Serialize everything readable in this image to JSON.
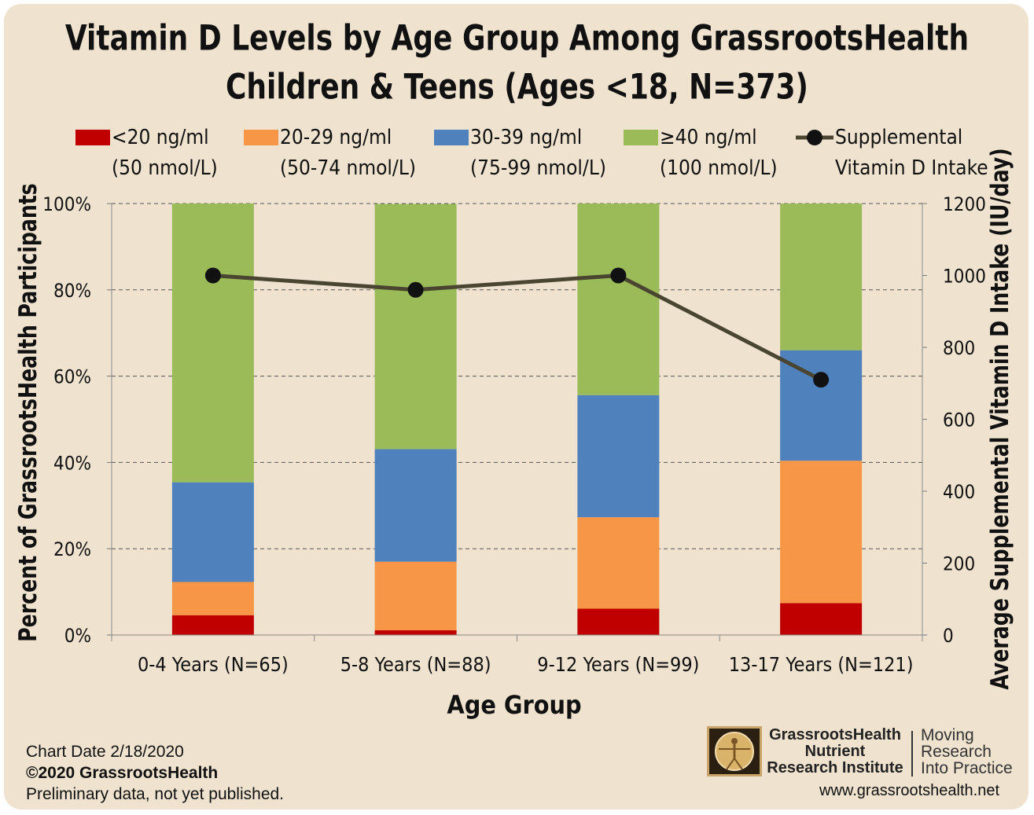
{
  "title_line1": "Vitamin D Levels by Age Group Among GrassrootsHealth",
  "title_line2": "Children & Teens (Ages <18, N=373)",
  "legend": [
    {
      "line1": "<20 ng/ml",
      "line2": "(50 nmol/L)",
      "color": "#c00000"
    },
    {
      "line1": "20-29 ng/ml",
      "line2": "(50-74 nmol/L)",
      "color": "#f79646"
    },
    {
      "line1": "30-39 ng/ml",
      "line2": "(75-99 nmol/L)",
      "color": "#4f81bd"
    },
    {
      "line1": "≥40 ng/ml",
      "line2": "(100 nmol/L)",
      "color": "#9bbb59"
    },
    {
      "line1": "Supplemental",
      "line2": "Vitamin D Intake",
      "color": "#4a4530"
    }
  ],
  "chart_data": {
    "type": "bar",
    "stacked": true,
    "categories": [
      "0-4 Years (N=65)",
      "5-8 Years (N=88)",
      "9-12 Years (N=99)",
      "13-17 Years (N=121)"
    ],
    "series": [
      {
        "name": "<20 ng/ml (50 nmol/L)",
        "values": [
          4.6,
          1.1,
          6.1,
          7.4
        ],
        "color": "#c00000"
      },
      {
        "name": "20-29 ng/ml (50-74 nmol/L)",
        "values": [
          7.7,
          15.9,
          21.2,
          33.0
        ],
        "color": "#f79646"
      },
      {
        "name": "30-39 ng/ml (75-99 nmol/L)",
        "values": [
          23.1,
          26.1,
          28.3,
          25.6
        ],
        "color": "#4f81bd"
      },
      {
        "name": "≥40 ng/ml (100 nmol/L)",
        "values": [
          64.6,
          56.8,
          44.4,
          34.0
        ],
        "color": "#9bbb59"
      }
    ],
    "line_series": {
      "name": "Supplemental Vitamin D Intake",
      "values": [
        1000,
        960,
        1000,
        710
      ],
      "color": "#4a4530",
      "axis": "right"
    },
    "xlabel": "Age Group",
    "ylabel": "Percent of GrassrootsHealth Participants",
    "y2label": "Average Supplemental Vitamin D Intake (IU/day)",
    "ylim": [
      0,
      100
    ],
    "y2lim": [
      0,
      1200
    ],
    "yticks": [
      "0%",
      "20%",
      "40%",
      "60%",
      "80%",
      "100%"
    ],
    "y2ticks": [
      "0",
      "200",
      "400",
      "600",
      "800",
      "1000",
      "1200"
    ],
    "grid": true,
    "legend_position": "top"
  },
  "footer": {
    "date": "Chart Date 2/18/2020",
    "copyright": "©2020 GrassrootsHealth",
    "note": "Preliminary data, not yet published.",
    "logo_line1": "GrassrootsHealth",
    "logo_line2": "Nutrient",
    "logo_line3": "Research Institute",
    "tagline1": "Moving",
    "tagline2": "Research",
    "tagline3": "Into Practice",
    "url": "www.grassrootshealth.net"
  }
}
